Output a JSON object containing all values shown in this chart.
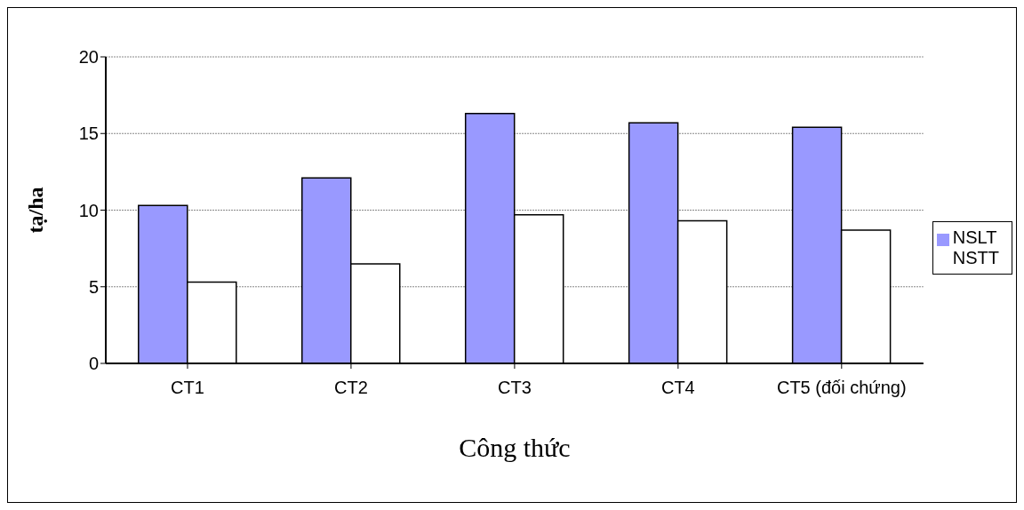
{
  "chart_data": {
    "type": "bar",
    "xlabel": "Công thức",
    "ylabel": "tạ/ha",
    "categories": [
      "CT1",
      "CT2",
      "CT3",
      "CT4",
      "CT5 (đối chứng)"
    ],
    "series": [
      {
        "name": "NSLT",
        "color": "#9999ff",
        "values": [
          10.3,
          12.1,
          16.3,
          15.7,
          15.4
        ]
      },
      {
        "name": "NSTT",
        "color": "#ffffff",
        "values": [
          5.3,
          6.5,
          9.7,
          9.3,
          8.7
        ]
      }
    ],
    "ylim": [
      0,
      20
    ],
    "yticks": [
      0,
      5,
      10,
      15,
      20
    ],
    "grid": "y",
    "legend": "right"
  }
}
